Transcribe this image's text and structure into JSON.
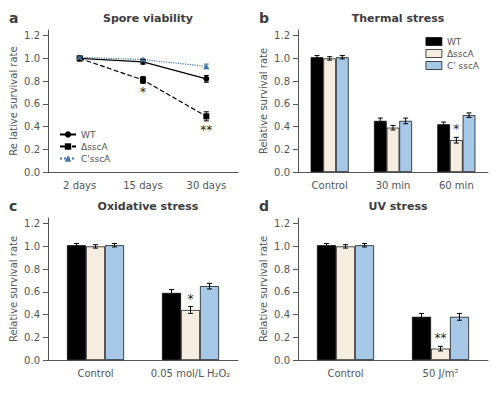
{
  "chart_data": [
    {
      "type": "line",
      "title": "Spore viability",
      "ylabel": "Re lative survival rate",
      "categories": [
        "2 days",
        "15 days",
        "30 days"
      ],
      "series": [
        {
          "name": "WT",
          "color": "#000000",
          "marker": "circle",
          "line_style": "solid",
          "values": [
            1.0,
            0.97,
            0.82
          ],
          "errors": [
            0.02,
            0.02,
            0.03
          ]
        },
        {
          "name": "ΔsscA",
          "color": "#000000",
          "marker": "square",
          "line_style": "dashed",
          "values": [
            1.0,
            0.81,
            0.49
          ],
          "errors": [
            0.02,
            0.03,
            0.04
          ]
        },
        {
          "name": "C'sscA",
          "color": "#4477aa",
          "marker": "triangle",
          "line_style": "dotted",
          "values": [
            1.01,
            0.99,
            0.93
          ],
          "errors": [
            0.01,
            0.01,
            0.02
          ]
        }
      ],
      "ylim": [
        0.0,
        1.25
      ],
      "yticks": [
        {
          "value": 0.0,
          "label": "0.0"
        },
        0.2,
        0.4,
        0.6,
        0.8,
        {
          "value": 1.0,
          "label": "1.0"
        },
        1.2
      ],
      "grid": false,
      "legend": "lower left",
      "annotations": [
        {
          "text": "*",
          "category": "15 days",
          "series": "ΔsscA"
        },
        {
          "text": "**",
          "category": "30 days",
          "series": "ΔsscA"
        },
        {
          "text": "a"
        }
      ]
    },
    {
      "type": "bar",
      "title": "Thermal stress",
      "ylabel": "Relative survival rate",
      "categories": [
        "Control",
        "30 min",
        "60 min"
      ],
      "series": [
        {
          "name": "WT",
          "color": "#000000",
          "values": [
            1.01,
            0.45,
            0.42
          ],
          "errors": [
            0.015,
            0.025,
            0.02
          ]
        },
        {
          "name": "ΔsscA",
          "color": "#f5ede0",
          "values": [
            1.0,
            0.39,
            0.28
          ],
          "errors": [
            0.015,
            0.02,
            0.025
          ]
        },
        {
          "name": "C' sscA",
          "color": "#a8c8e8",
          "values": [
            1.01,
            0.45,
            0.5
          ],
          "errors": [
            0.015,
            0.025,
            0.02
          ]
        }
      ],
      "ylim": [
        0.0,
        1.25
      ],
      "yticks": [
        {
          "value": 0.0,
          "label": "0.0"
        },
        0.2,
        0.4,
        0.6,
        0.8,
        {
          "value": 1.0,
          "label": "1.0"
        },
        1.2
      ],
      "grid": false,
      "legend": "upper right",
      "annotations": [
        {
          "text": "*",
          "category": "60 min",
          "series": "ΔsscA"
        },
        {
          "text": "b"
        }
      ]
    },
    {
      "type": "bar",
      "title": "Oxidative stress",
      "ylabel": "Relative survival rate",
      "categories": [
        "Control",
        "0.05 mol/L H₂O₂"
      ],
      "series": [
        {
          "name": "WT",
          "color": "#000000",
          "values": [
            1.01,
            0.59
          ],
          "errors": [
            0.015,
            0.03
          ]
        },
        {
          "name": "ΔsscA",
          "color": "#f5ede0",
          "values": [
            1.0,
            0.44
          ],
          "errors": [
            0.015,
            0.03
          ]
        },
        {
          "name": "C' sscA",
          "color": "#a8c8e8",
          "values": [
            1.01,
            0.65
          ],
          "errors": [
            0.015,
            0.025
          ]
        }
      ],
      "ylim": [
        0.0,
        1.25
      ],
      "yticks": [
        {
          "value": 0.0,
          "label": "0.0"
        },
        0.2,
        0.4,
        0.6,
        0.8,
        {
          "value": 1.0,
          "label": "1.0"
        },
        1.2
      ],
      "grid": false,
      "legend": false,
      "annotations": [
        {
          "text": "*",
          "category": "0.05 mol/L H₂O₂",
          "series": "ΔsscA"
        },
        {
          "text": "c"
        }
      ]
    },
    {
      "type": "bar",
      "title": "UV stress",
      "ylabel": "Relative survival rate",
      "categories": [
        "Control",
        "50 J/m²"
      ],
      "series": [
        {
          "name": "WT",
          "color": "#000000",
          "values": [
            1.01,
            0.38
          ],
          "errors": [
            0.015,
            0.03
          ]
        },
        {
          "name": "ΔsscA",
          "color": "#f5ede0",
          "values": [
            1.0,
            0.1
          ],
          "errors": [
            0.015,
            0.02
          ]
        },
        {
          "name": "C' sscA",
          "color": "#a8c8e8",
          "values": [
            1.01,
            0.38
          ],
          "errors": [
            0.015,
            0.03
          ]
        }
      ],
      "ylim": [
        0.0,
        1.25
      ],
      "yticks": [
        {
          "value": 0.0,
          "label": "0.0"
        },
        0.2,
        0.4,
        0.6,
        0.8,
        {
          "value": 1.0,
          "label": "1.0"
        },
        1.2
      ],
      "grid": false,
      "legend": false,
      "annotations": [
        {
          "text": "**",
          "category": "50 J/m²",
          "series": "ΔsscA"
        },
        {
          "text": "d"
        }
      ]
    }
  ]
}
